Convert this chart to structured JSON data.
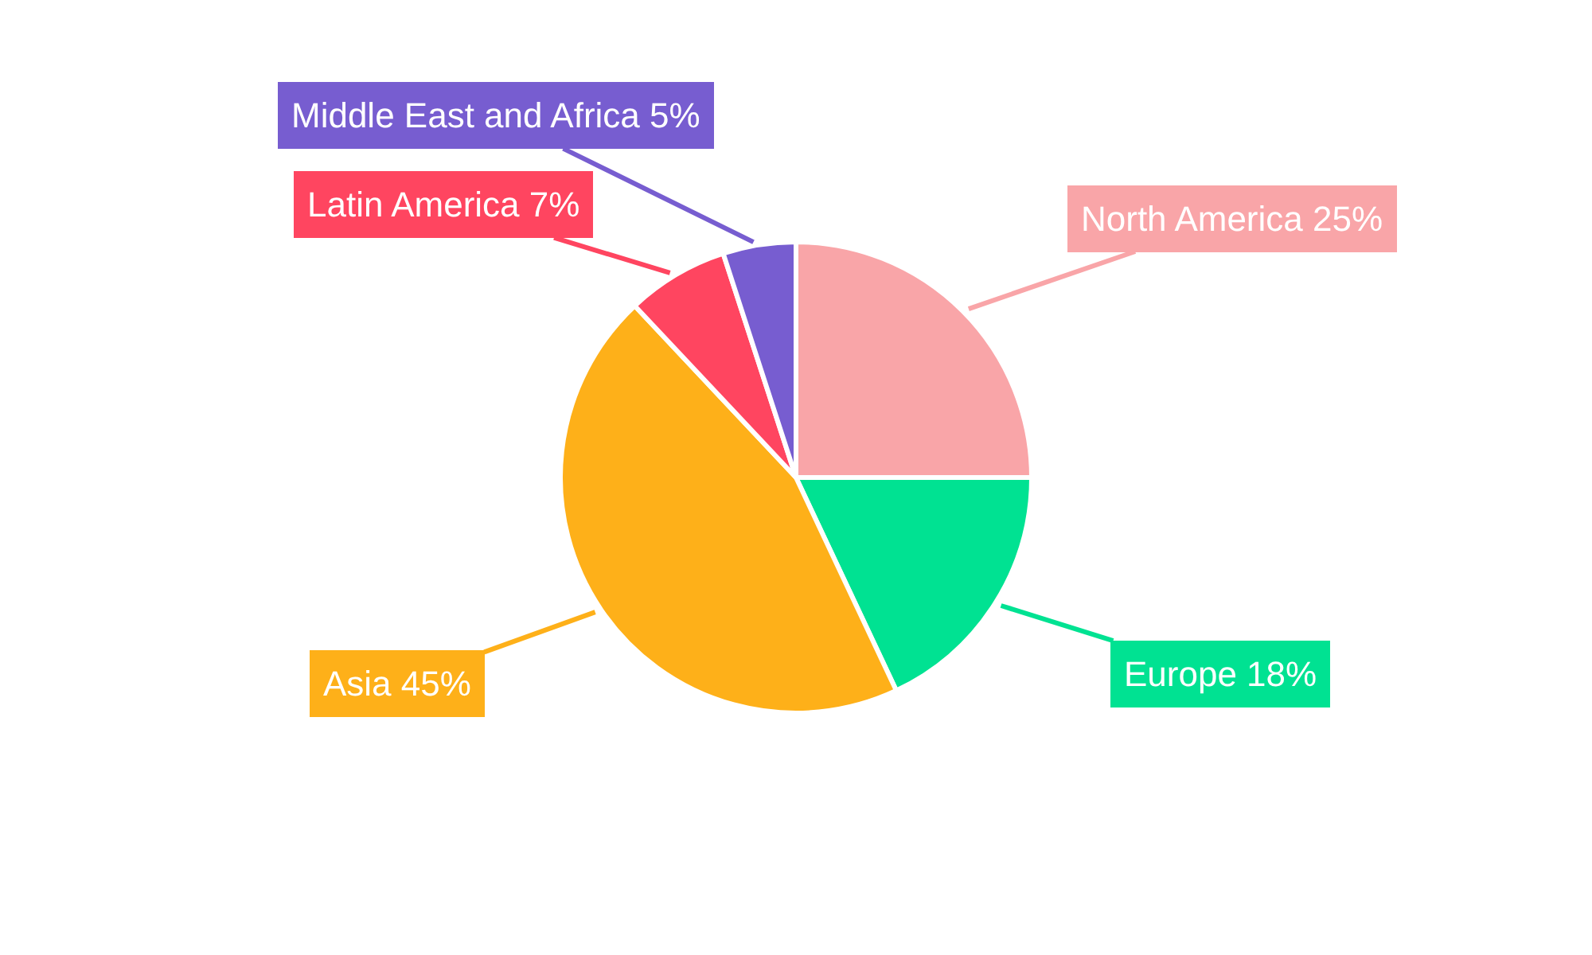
{
  "chart_data": {
    "type": "pie",
    "categories": [
      "North America",
      "Europe",
      "Asia",
      "Latin America",
      "Middle East and Africa"
    ],
    "values": [
      25,
      18,
      45,
      7,
      5
    ],
    "value_labels": [
      "25%",
      "18%",
      "45%",
      "7%",
      "5%"
    ],
    "colors": [
      "#f9a5a8",
      "#00e292",
      "#feb019",
      "#ff4560",
      "#775dd0"
    ],
    "legend": false
  }
}
